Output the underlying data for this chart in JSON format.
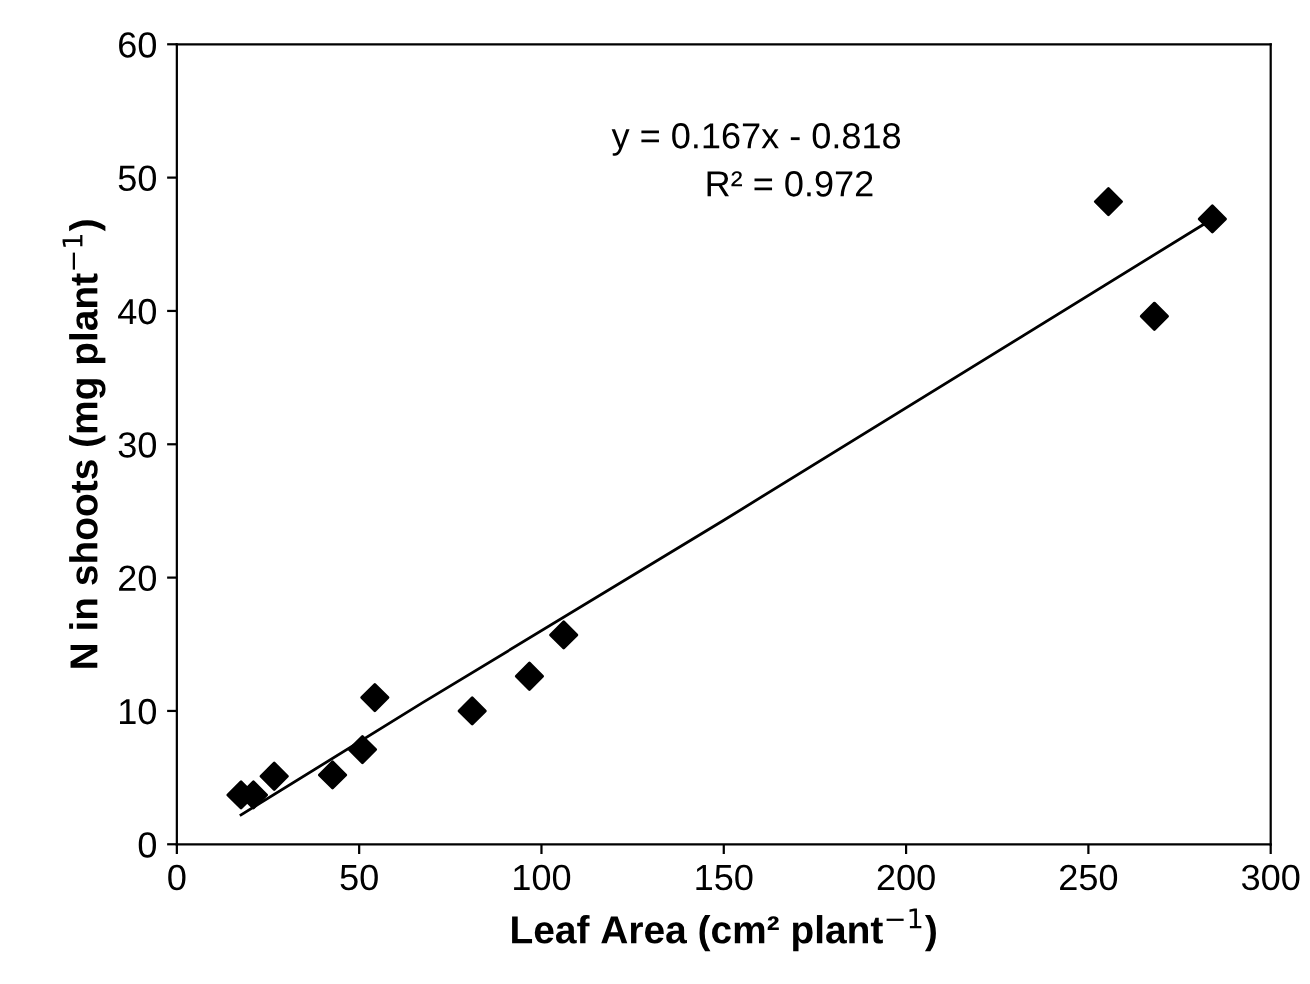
{
  "chart_data": {
    "type": "scatter",
    "xlabel": "Leaf Area (cm² plant$^{−1}$)",
    "ylabel": "N in shoots (mg plant$^{−1}$)",
    "annotations": [
      "y = 0.167x - 0.818",
      "R² = 0.972"
    ],
    "xlim": [
      0,
      300
    ],
    "ylim": [
      0,
      60
    ],
    "xticks": [
      0,
      50,
      100,
      150,
      200,
      250,
      300
    ],
    "yticks": [
      0,
      10,
      20,
      30,
      40,
      50,
      60
    ],
    "grid": false,
    "legend": false,
    "marker": "diamond",
    "series": [
      {
        "color": "#000000",
        "x": [
          17.6,
          21.0,
          26.7,
          42.7,
          50.9,
          54.3,
          81.0,
          96.7,
          106.1,
          255.5,
          268.1,
          284.0
        ],
        "values": [
          3.7,
          3.7,
          5.1,
          5.2,
          7.1,
          11.0,
          10.0,
          12.6,
          15.7,
          48.2,
          39.6,
          46.9
        ]
      },
      {
        "type": "line",
        "color": "#000000",
        "marker": "none",
        "line_style": "solid",
        "x": [
          17.6,
          67.3,
          150,
          284.0
        ],
        "values": [
          2.2,
          10.6,
          24.3,
          46.9
        ]
      }
    ]
  }
}
